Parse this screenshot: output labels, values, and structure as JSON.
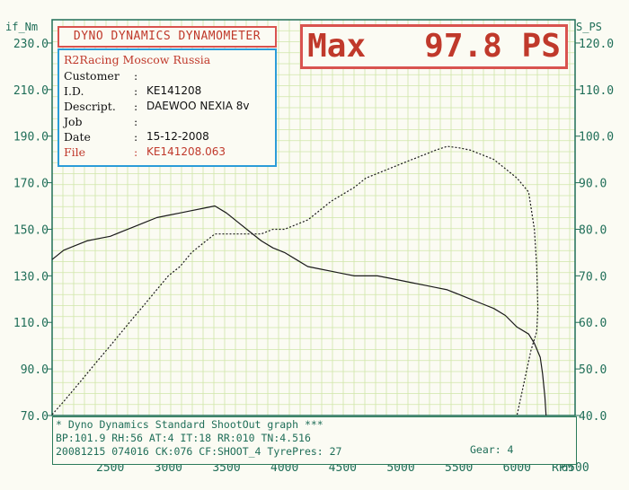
{
  "header": {
    "brand": "DYNO DYNAMICS DYNAMOMETER",
    "max_label": "Max",
    "max_value": "97.8",
    "max_unit": "PS"
  },
  "info": {
    "title": "R2Racing Moscow Russia",
    "rows": [
      {
        "label": "Customer",
        "sep": ":",
        "value": ""
      },
      {
        "label": "I.D.",
        "sep": ":",
        "value": "KE141208"
      },
      {
        "label": "Descript.",
        "sep": ":",
        "value": "DAEWOO NEXIA 8v"
      },
      {
        "label": "Job",
        "sep": ":",
        "value": ""
      },
      {
        "label": "Date",
        "sep": ":",
        "value": "15-12-2008"
      },
      {
        "label": "File",
        "sep": ":",
        "value": "KE141208.063"
      }
    ]
  },
  "footer": {
    "line1": "* Dyno Dynamics Standard ShootOut graph ***",
    "line2": "BP:101.9 RH:56 AT:4  IT:18  RR:010 TN:4.516",
    "line3": "20081215 074016 CK:076 CF:SHOOT_4  TyrePres: 27",
    "gear": "Gear: 4"
  },
  "colors": {
    "grid": "#cfe6a8",
    "axis": "#1f6e58",
    "accent_red": "#d9534f",
    "info_border": "#2b9cd8",
    "curve": "#1a1a1a",
    "background": "#fbfbf3"
  },
  "chart_data": {
    "type": "line",
    "title": "",
    "xlabel": "RPM",
    "ylabel_left": "if_Nm",
    "ylabel_right": "S_PS",
    "x_ticks": [
      2500,
      3000,
      3500,
      4000,
      4500,
      5000,
      5500,
      6000,
      6500
    ],
    "x_tick_labels": [
      "2500",
      "3000",
      "3500",
      "4000",
      "4500",
      "5000",
      "5500",
      "6000",
      "6500"
    ],
    "xlim": [
      2000,
      6500
    ],
    "ylim_left": [
      70,
      240
    ],
    "ylim_right": [
      40,
      125
    ],
    "y_left_ticks": [
      70,
      90,
      110,
      130,
      150,
      170,
      190,
      210,
      230
    ],
    "y_left_tick_labels": [
      "70.0",
      "90.0",
      "110.0",
      "130.0",
      "150.0",
      "170.0",
      "190.0",
      "210.0",
      "230.0"
    ],
    "y_right_ticks": [
      40,
      50,
      60,
      70,
      80,
      90,
      100,
      110,
      120
    ],
    "y_right_tick_labels": [
      "40.0",
      "50.0",
      "60.0",
      "70.0",
      "80.0",
      "90.0",
      "100.0",
      "110.0",
      "120.0"
    ],
    "grid": true,
    "series": [
      {
        "axis": "left",
        "style": "solid",
        "points": [
          [
            2000,
            137
          ],
          [
            2100,
            141
          ],
          [
            2200,
            143
          ],
          [
            2300,
            145
          ],
          [
            2400,
            146
          ],
          [
            2500,
            147
          ],
          [
            2600,
            149
          ],
          [
            2700,
            151
          ],
          [
            2800,
            153
          ],
          [
            2900,
            155
          ],
          [
            3000,
            156
          ],
          [
            3100,
            157
          ],
          [
            3200,
            158
          ],
          [
            3300,
            159
          ],
          [
            3400,
            160
          ],
          [
            3500,
            157
          ],
          [
            3600,
            153
          ],
          [
            3700,
            149
          ],
          [
            3800,
            145
          ],
          [
            3900,
            142
          ],
          [
            4000,
            140
          ],
          [
            4100,
            137
          ],
          [
            4200,
            134
          ],
          [
            4300,
            133
          ],
          [
            4400,
            132
          ],
          [
            4500,
            131
          ],
          [
            4600,
            130
          ],
          [
            4700,
            130
          ],
          [
            4800,
            130
          ],
          [
            4900,
            129
          ],
          [
            5000,
            128
          ],
          [
            5100,
            127
          ],
          [
            5200,
            126
          ],
          [
            5300,
            125
          ],
          [
            5400,
            124
          ],
          [
            5500,
            122
          ],
          [
            5600,
            120
          ],
          [
            5700,
            118
          ],
          [
            5800,
            116
          ],
          [
            5900,
            113
          ],
          [
            6000,
            108
          ],
          [
            6100,
            105
          ],
          [
            6150,
            101
          ],
          [
            6200,
            95
          ],
          [
            6220,
            88
          ],
          [
            6240,
            78
          ],
          [
            6250,
            70
          ]
        ]
      },
      {
        "axis": "right",
        "style": "dotted",
        "points": [
          [
            2000,
            40.2
          ],
          [
            2100,
            43
          ],
          [
            2200,
            46
          ],
          [
            2300,
            49
          ],
          [
            2400,
            52
          ],
          [
            2500,
            55
          ],
          [
            2600,
            58
          ],
          [
            2700,
            61
          ],
          [
            2800,
            64
          ],
          [
            2900,
            67
          ],
          [
            3000,
            70
          ],
          [
            3100,
            72
          ],
          [
            3200,
            75
          ],
          [
            3300,
            77
          ],
          [
            3400,
            79
          ],
          [
            3500,
            79
          ],
          [
            3600,
            79
          ],
          [
            3700,
            79
          ],
          [
            3800,
            79
          ],
          [
            3900,
            80
          ],
          [
            4000,
            80
          ],
          [
            4100,
            81
          ],
          [
            4200,
            82
          ],
          [
            4300,
            84
          ],
          [
            4400,
            86
          ],
          [
            4500,
            87.5
          ],
          [
            4600,
            89
          ],
          [
            4700,
            91
          ],
          [
            4800,
            92
          ],
          [
            4900,
            93
          ],
          [
            5000,
            94
          ],
          [
            5100,
            95
          ],
          [
            5200,
            96
          ],
          [
            5300,
            97
          ],
          [
            5400,
            97.8
          ],
          [
            5500,
            97.5
          ],
          [
            5600,
            97
          ],
          [
            5700,
            96
          ],
          [
            5800,
            95
          ],
          [
            5900,
            93
          ],
          [
            6000,
            91
          ],
          [
            6100,
            88
          ],
          [
            6150,
            80
          ],
          [
            6170,
            72
          ],
          [
            6180,
            63
          ],
          [
            6170,
            58
          ],
          [
            6120,
            54
          ],
          [
            6060,
            47
          ],
          [
            6000,
            40
          ]
        ]
      }
    ]
  }
}
